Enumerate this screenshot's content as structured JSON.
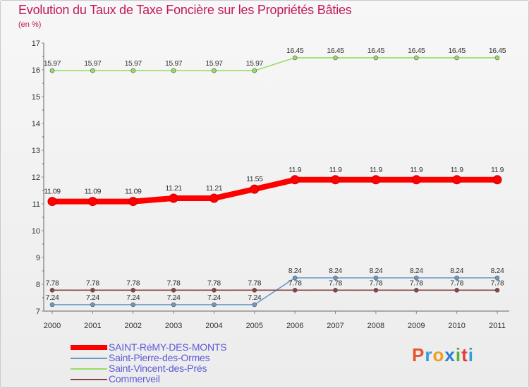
{
  "chart_data": {
    "type": "line",
    "title": "Evolution du Taux de Taxe Foncière sur les Propriétés Bâties",
    "subtitle": "(en %)",
    "categories": [
      "2000",
      "2001",
      "2002",
      "2003",
      "2004",
      "2005",
      "2006",
      "2007",
      "2008",
      "2009",
      "2010",
      "2011"
    ],
    "ylim": [
      7,
      17
    ],
    "yticks": [
      "7",
      "8",
      "9",
      "10",
      "11",
      "12",
      "13",
      "14",
      "15",
      "16",
      "17"
    ],
    "series": [
      {
        "name": "SAINT-RéMY-DES-MONTS",
        "color": "#ff0000",
        "values": [
          11.09,
          11.09,
          11.09,
          11.21,
          11.21,
          11.55,
          11.9,
          11.9,
          11.9,
          11.9,
          11.9,
          11.9
        ],
        "labels": [
          "11.09",
          "11.09",
          "11.09",
          "11.21",
          "11.21",
          "11.55",
          "11.9",
          "11.9",
          "11.9",
          "11.9",
          "11.9",
          "11.9"
        ],
        "emphasis": true
      },
      {
        "name": "Saint-Pierre-des-Ormes",
        "color": "#6699cc",
        "values": [
          7.24,
          7.24,
          7.24,
          7.24,
          7.24,
          7.24,
          8.24,
          8.24,
          8.24,
          8.24,
          8.24,
          8.24
        ],
        "labels": [
          "7.24",
          "7.24",
          "7.24",
          "7.24",
          "7.24",
          "7.24",
          "8.24",
          "8.24",
          "8.24",
          "8.24",
          "8.24",
          "8.24"
        ],
        "emphasis": false
      },
      {
        "name": "Saint-Vincent-des-Prés",
        "color": "#99dd66",
        "values": [
          15.97,
          15.97,
          15.97,
          15.97,
          15.97,
          15.97,
          16.45,
          16.45,
          16.45,
          16.45,
          16.45,
          16.45
        ],
        "labels": [
          "15.97",
          "15.97",
          "15.97",
          "15.97",
          "15.97",
          "15.97",
          "16.45",
          "16.45",
          "16.45",
          "16.45",
          "16.45",
          "16.45"
        ],
        "emphasis": false
      },
      {
        "name": "Commerveil",
        "color": "#884444",
        "values": [
          7.78,
          7.78,
          7.78,
          7.78,
          7.78,
          7.78,
          7.78,
          7.78,
          7.78,
          7.78,
          7.78,
          7.78
        ],
        "labels": [
          "7.78",
          "7.78",
          "7.78",
          "7.78",
          "7.78",
          "7.78",
          "7.78",
          "7.78",
          "7.78",
          "7.78",
          "7.78",
          "7.78"
        ],
        "emphasis": false
      }
    ],
    "legend_position": "bottom-left",
    "grid": false
  },
  "brand": {
    "text": "Proxiti",
    "colors": [
      "#e8552a",
      "#3a9ad9",
      "#f0a020",
      "#2a7fd0",
      "#5ab030",
      "#e83a3a",
      "#3a9ad9"
    ]
  }
}
